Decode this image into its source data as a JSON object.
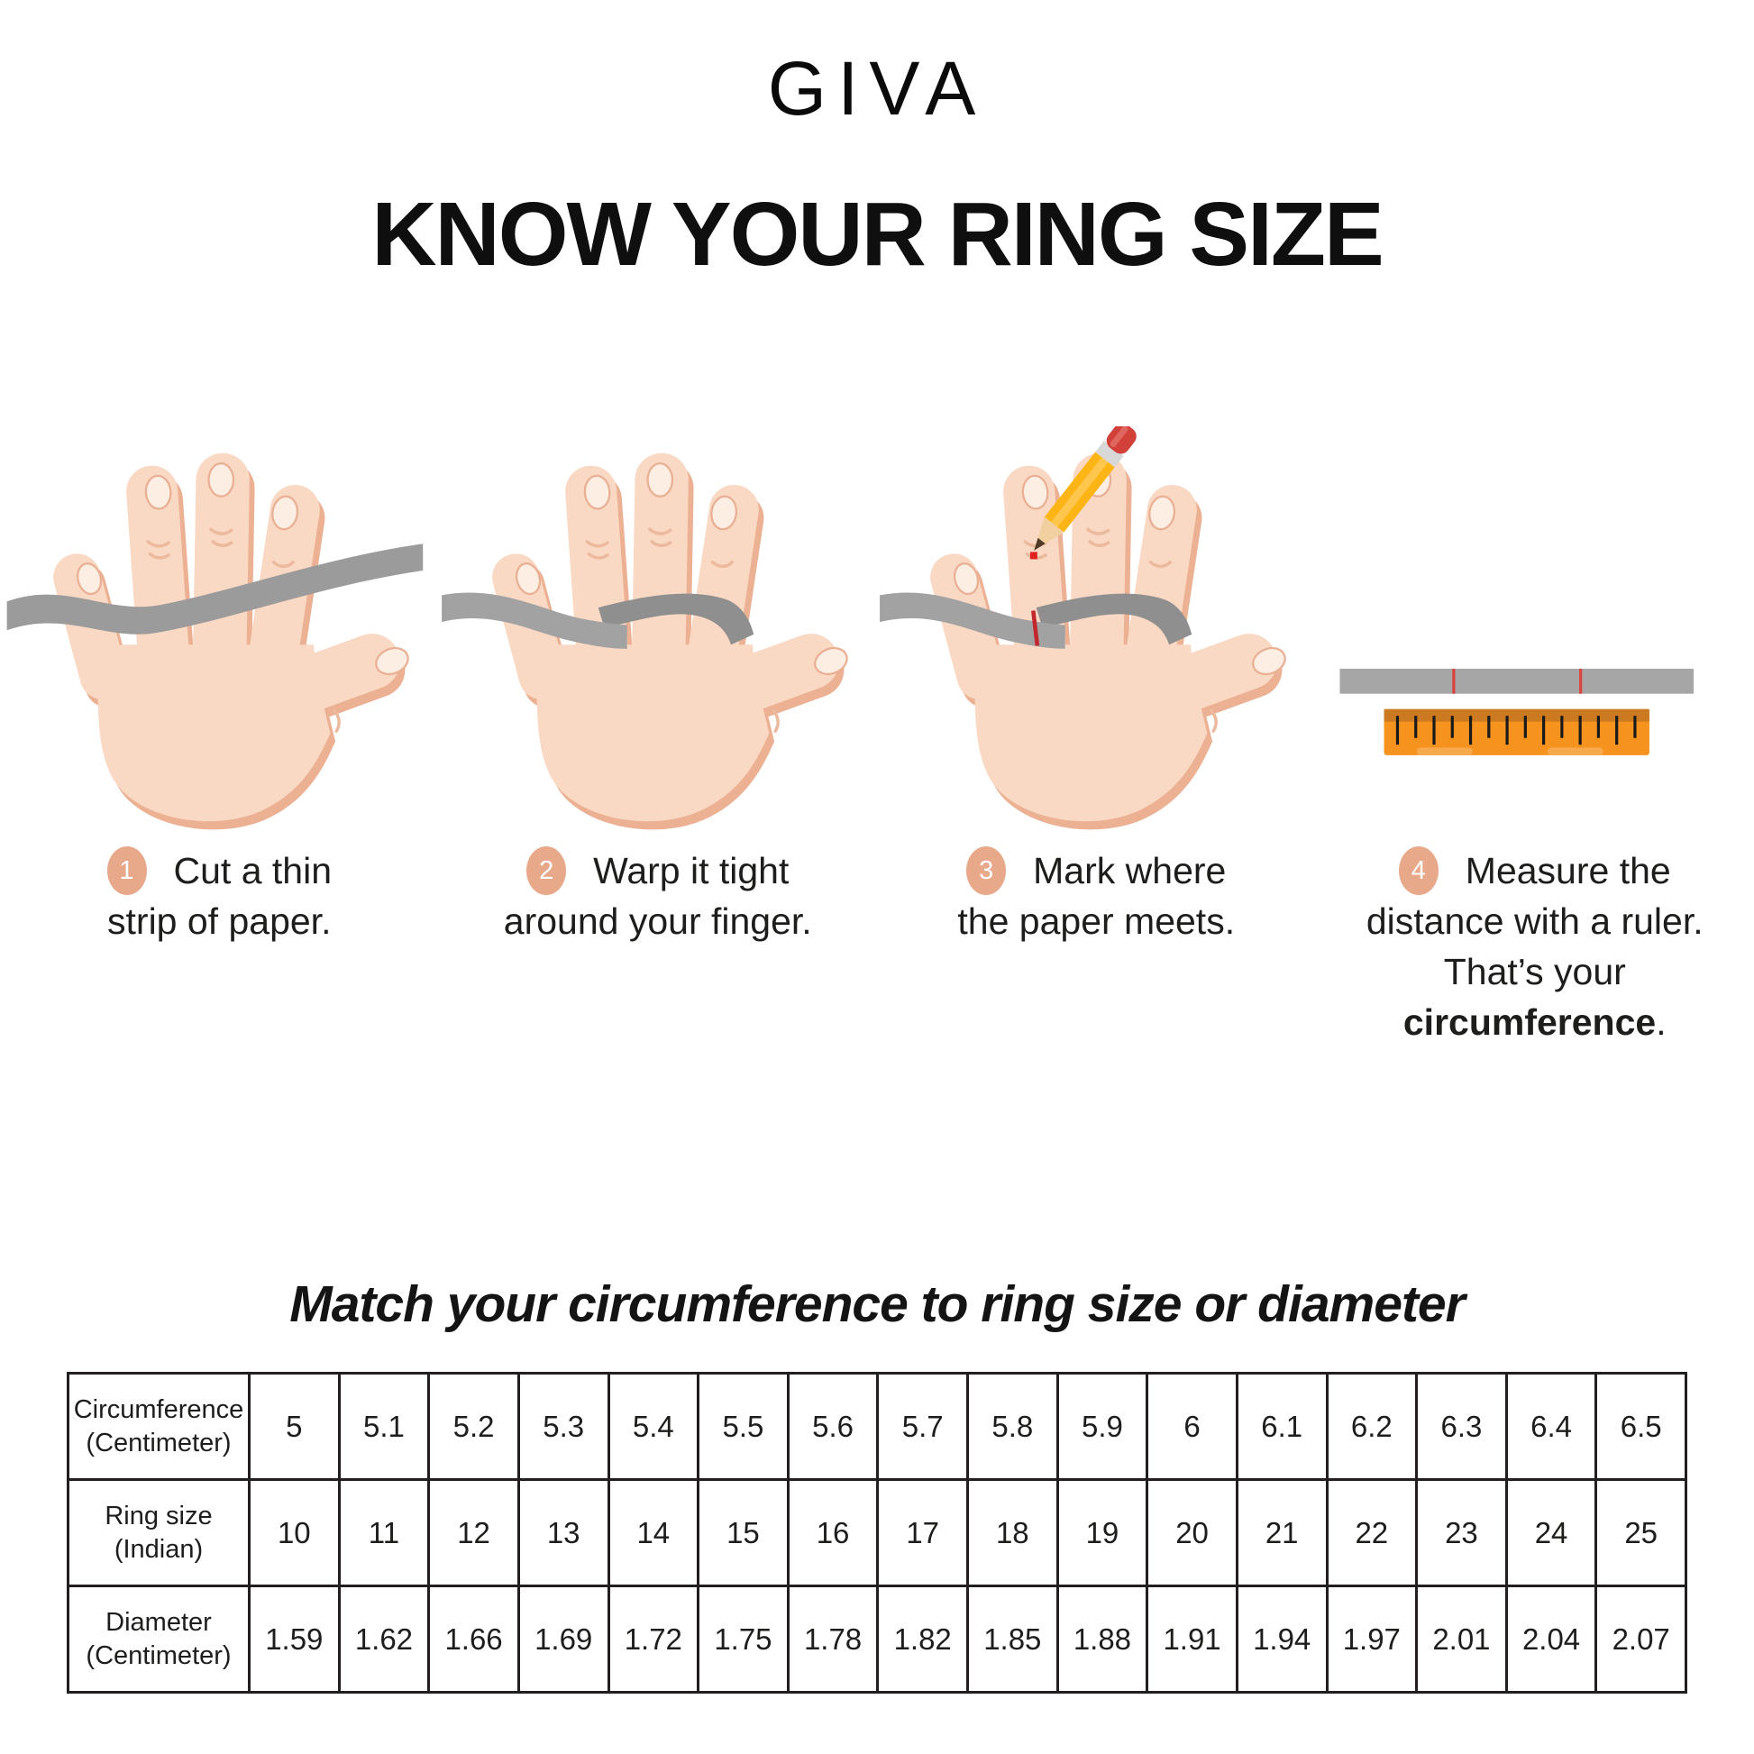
{
  "brand": {
    "logo": "GIVA"
  },
  "title": "KNOW YOUR RING SIZE",
  "steps": [
    {
      "number": "1",
      "line1": "Cut a thin",
      "line2": "strip of paper."
    },
    {
      "number": "2",
      "line1": "Warp it tight",
      "line2": "around your finger."
    },
    {
      "number": "3",
      "line1": "Mark where",
      "line2": "the paper meets."
    },
    {
      "number": "4",
      "line1": "Measure the",
      "line2": "distance with a ruler.",
      "line3_prefix": "That’s your ",
      "line3_bold": "circumference",
      "line3_suffix": "."
    }
  ],
  "size_table": {
    "heading": "Match your circumference to ring size or diameter",
    "rows": [
      {
        "label": [
          "Circumference",
          "(Centimeter)"
        ],
        "values": [
          "5",
          "5.1",
          "5.2",
          "5.3",
          "5.4",
          "5.5",
          "5.6",
          "5.7",
          "5.8",
          "5.9",
          "6",
          "6.1",
          "6.2",
          "6.3",
          "6.4",
          "6.5"
        ]
      },
      {
        "label": [
          "Ring size",
          "(Indian)"
        ],
        "values": [
          "10",
          "11",
          "12",
          "13",
          "14",
          "15",
          "16",
          "17",
          "18",
          "19",
          "20",
          "21",
          "22",
          "23",
          "24",
          "25"
        ]
      },
      {
        "label": [
          "Diameter",
          "(Centimeter)"
        ],
        "values": [
          "1.59",
          "1.62",
          "1.66",
          "1.69",
          "1.72",
          "1.75",
          "1.78",
          "1.82",
          "1.85",
          "1.88",
          "1.91",
          "1.94",
          "1.97",
          "2.01",
          "2.04",
          "2.07"
        ]
      }
    ]
  },
  "colors": {
    "badge": "#e8a98b",
    "skin": "#f9d8c4",
    "skin_shade": "#ecb193",
    "paper_strip_gray": "#9b9b9b",
    "ruler_orange": "#f6921e",
    "mark_red": "#c1272d",
    "text": "#1d1d1b",
    "table_border": "#231f20"
  }
}
